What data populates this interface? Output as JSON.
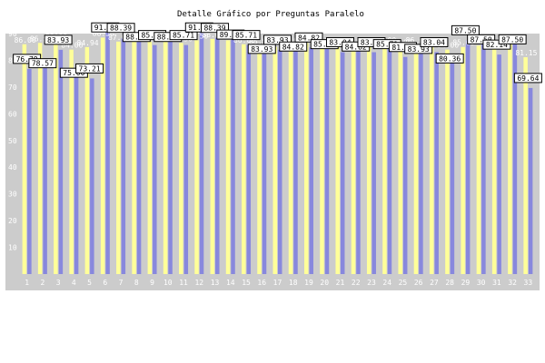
{
  "chart_data": {
    "type": "bar",
    "title": "Detalle Gráfico por Preguntas Paralelo",
    "xlabel": "",
    "ylabel": "",
    "ylim": [
      0,
      90
    ],
    "yticks": [
      10,
      20,
      30,
      40,
      50,
      60,
      70,
      80,
      90
    ],
    "grid": false,
    "legend": "none",
    "categories": [
      "1",
      "2",
      "3",
      "4",
      "5",
      "6",
      "7",
      "8",
      "9",
      "10",
      "11",
      "12",
      "13",
      "14",
      "15",
      "16",
      "17",
      "18",
      "19",
      "20",
      "21",
      "22",
      "23",
      "24",
      "25",
      "26",
      "27",
      "28",
      "29",
      "30",
      "31",
      "32",
      "33"
    ],
    "series": [
      {
        "color": "#8888dd",
        "values": [
          76.79,
          78.57,
          83.93,
          75.0,
          73.21,
          91.96,
          88.39,
          88.39,
          85.71,
          88.39,
          85.71,
          91.96,
          88.39,
          89.29,
          85.71,
          83.93,
          83.93,
          84.82,
          84.82,
          85.71,
          83.04,
          84.82,
          83.04,
          85.71,
          81.25,
          83.93,
          83.04,
          80.36,
          87.5,
          87.5,
          82.14,
          87.5,
          69.64
        ],
        "labels": [
          "76.79",
          "78.57",
          "83.93",
          "75.00",
          "73.21",
          "91.96",
          "88.39",
          "88.39",
          "85.71",
          "88.39",
          "85.71",
          "91.96",
          "88.39",
          "89.29",
          "85.71",
          "83.93",
          "83.93",
          "84.82",
          "84.82",
          "85.71",
          "83.04",
          "84.82",
          "83.04",
          "85.71",
          "81.25",
          "83.93",
          "83.04",
          "80.36",
          "87.50",
          "87.50",
          "82.14",
          "87.50",
          "69.64"
        ]
      },
      {
        "color": "#ffff99",
        "values": [
          86.0,
          86.5,
          89.0,
          84.0,
          84.94,
          88.5,
          87.0,
          88.0,
          87.0,
          87.5,
          86.5,
          87.5,
          88.0,
          87.5,
          86.0,
          85.5,
          85.0,
          86.0,
          86.5,
          86.0,
          85.5,
          86.0,
          85.0,
          86.0,
          85.0,
          86.0,
          85.0,
          84.0,
          85.0,
          85.5,
          86.0,
          87.0,
          81.15
        ],
        "labels": [
          "86.00",
          "86.50",
          "89.00",
          "84.00",
          "84.94",
          "88.50",
          "87.00",
          "88.00",
          "87.00",
          "87.50",
          "86.50",
          "87.50",
          "88.00",
          "87.50",
          "86.00",
          "85.50",
          "85.00",
          "86.00",
          "86.50",
          "86.00",
          "85.50",
          "86.00",
          "85.00",
          "86.00",
          "85.00",
          "86.00",
          "85.00",
          "84.00",
          "85.00",
          "85.50",
          "86.00",
          "87.00",
          "81.15"
        ]
      }
    ]
  },
  "colors": {
    "plot_background": "#cccccc",
    "text_light": "#ffffff"
  }
}
